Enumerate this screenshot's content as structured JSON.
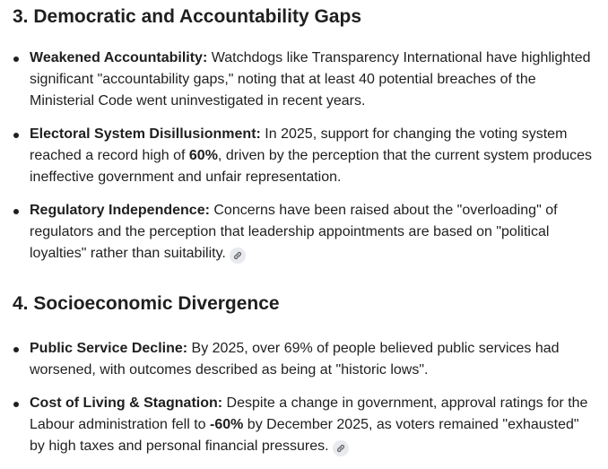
{
  "section1": {
    "heading": "3. Democratic and Accountability Gaps",
    "items": [
      {
        "lead": "Weakened Accountability:",
        "text": " Watchdogs like Transparency International have highlighted significant \"accountability gaps,\" noting that at least 40 potential breaches of the Ministerial Code went uninvestigated in recent years."
      },
      {
        "lead": "Electoral System Disillusionment:",
        "text_before": " In 2025, support for changing the voting system reached a record high of ",
        "bold": "60%",
        "text_after": ", driven by the perception that the current system produces ineffective government and unfair representation."
      },
      {
        "lead": "Regulatory Independence:",
        "text": " Concerns have been raised about the \"overloading\" of regulators and the perception that leadership appointments are based on \"political loyalties\" rather than suitability.",
        "has_source_icon": true
      }
    ]
  },
  "section2": {
    "heading": "4. Socioeconomic Divergence",
    "items": [
      {
        "lead": "Public Service Decline:",
        "text": " By 2025, over 69% of people believed public services had worsened, with outcomes described as being at \"historic lows\"."
      },
      {
        "lead": "Cost of Living & Stagnation:",
        "text_before": " Despite a change in government, approval ratings for the Labour administration fell to ",
        "bold": "-60%",
        "text_after": " by December 2025, as voters remained \"exhausted\" by high taxes and personal financial pressures.",
        "has_source_icon": true
      }
    ]
  },
  "icons": {
    "source": "link-icon"
  },
  "colors": {
    "text": "#1f1f1f",
    "chip_bg": "#e9eaee",
    "chip_icon": "#5f6368"
  }
}
